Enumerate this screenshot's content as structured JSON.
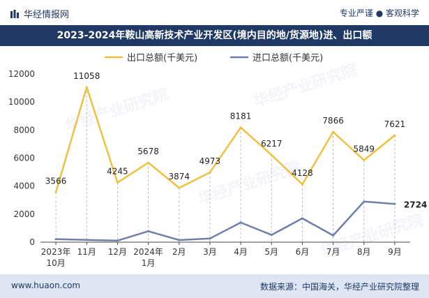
{
  "header": {
    "brand": "华经情报网",
    "tagline": "专业严谨 ● 客观科学"
  },
  "title": "2023-2024年鞍山高新技术产业开发区(境内目的地/货源地)进、出口额",
  "footer": {
    "url": "www.huaon.com",
    "source": "数据来源：中国海关，华经产业研究院整理"
  },
  "watermark": "华经产业研究院",
  "colors": {
    "export": "#f0c040",
    "import": "#6f7fa8",
    "title_bg": "#1f3864",
    "footer_bg": "#dde6f2"
  },
  "chart_data": {
    "type": "line",
    "title": "2023-2024年鞍山高新技术产业开发区(境内目的地/货源地)进、出口额",
    "categories": [
      [
        "2023年",
        "10月"
      ],
      [
        "11月"
      ],
      [
        "12月"
      ],
      [
        "2024年",
        "1月"
      ],
      [
        "2月"
      ],
      [
        "3月"
      ],
      [
        "4月"
      ],
      [
        "5月"
      ],
      [
        "6月"
      ],
      [
        "7月"
      ],
      [
        "8月"
      ],
      [
        "9月"
      ]
    ],
    "series": [
      {
        "name": "出口总额(千美元)",
        "values": [
          3566,
          11058,
          4245,
          5678,
          3874,
          4973,
          8181,
          6217,
          4128,
          7866,
          5849,
          7621
        ],
        "labels_shown": true
      },
      {
        "name": "进口总额(千美元)",
        "values": [
          220,
          160,
          110,
          780,
          150,
          260,
          1400,
          520,
          1700,
          480,
          2900,
          2724
        ],
        "labels_shown": false
      }
    ],
    "last_label": "2724",
    "y_ticks": [
      "0",
      "2000",
      "4000",
      "6000",
      "8000",
      "10000",
      "12000"
    ],
    "ylim": [
      0,
      12000
    ],
    "xlabel": "",
    "ylabel": "",
    "legend": "top"
  }
}
